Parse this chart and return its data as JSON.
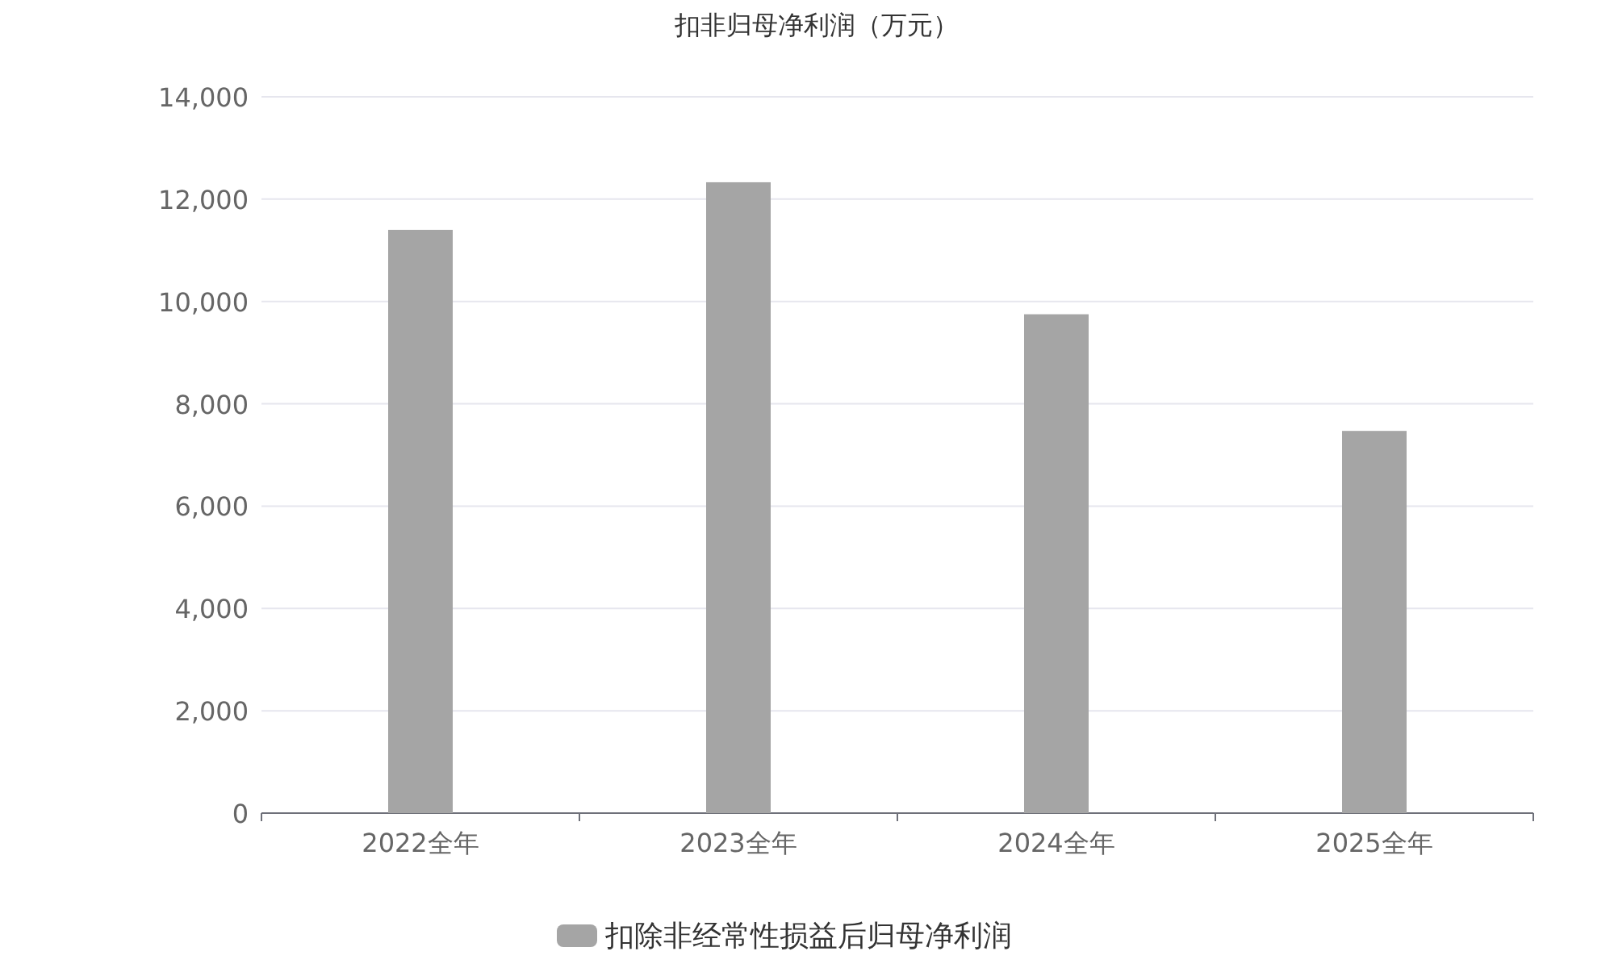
{
  "chart_data": {
    "type": "bar",
    "title": "扣非归母净利润（万元）",
    "categories": [
      "2022全年",
      "2023全年",
      "2024全年",
      "2025全年"
    ],
    "series": [
      {
        "name": "扣除非经常性损益后归母净利润",
        "color": "#a5a5a5",
        "values": [
          11400,
          12330,
          9750,
          7470
        ]
      }
    ],
    "ylim": [
      0,
      14000
    ],
    "yticks": [
      0,
      {
        "value": 2000,
        "label": "2,000"
      },
      {
        "value": 4000,
        "label": "4,000"
      },
      {
        "value": 6000,
        "label": "6,000"
      },
      {
        "value": 8000,
        "label": "8,000"
      },
      {
        "value": 10000,
        "label": "10,000"
      },
      {
        "value": 12000,
        "label": "12,000"
      },
      {
        "value": 14000,
        "label": "14,000"
      }
    ],
    "grid": "y",
    "legend": "bottom"
  }
}
